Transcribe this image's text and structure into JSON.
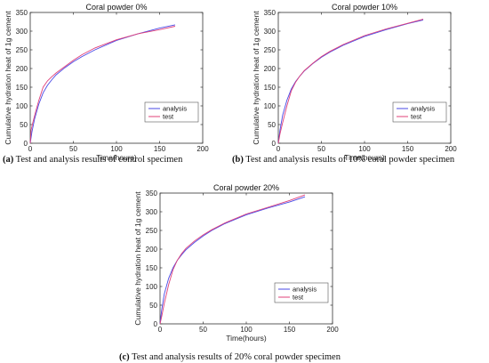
{
  "colors": {
    "analysis": "#4a4ae6",
    "test": "#e0407a",
    "axis": "#333333"
  },
  "chart_data": [
    {
      "type": "line",
      "title": "Coral powder 0%",
      "xlabel": "Time(hours)",
      "ylabel": "Cumulative hydration heat of 1g cement",
      "xlim": [
        0,
        200
      ],
      "ylim": [
        0,
        350
      ],
      "xticks": [
        0,
        50,
        100,
        150,
        200
      ],
      "yticks": [
        0,
        50,
        100,
        150,
        200,
        250,
        300,
        350
      ],
      "legend_position": "lower-right",
      "caption_label": "(a)",
      "caption_text": " Test and analysis results of control specimen",
      "series": [
        {
          "name": "analysis",
          "points": [
            [
              0,
              0
            ],
            [
              2,
              30
            ],
            [
              5,
              65
            ],
            [
              10,
              105
            ],
            [
              15,
              135
            ],
            [
              20,
              155
            ],
            [
              25,
              170
            ],
            [
              30,
              183
            ],
            [
              40,
              202
            ],
            [
              50,
              218
            ],
            [
              60,
              232
            ],
            [
              75,
              250
            ],
            [
              100,
              275
            ],
            [
              125,
              293
            ],
            [
              150,
              308
            ],
            [
              168,
              317
            ]
          ]
        },
        {
          "name": "test",
          "points": [
            [
              0,
              0
            ],
            [
              1,
              35
            ],
            [
              3,
              55
            ],
            [
              6,
              82
            ],
            [
              10,
              115
            ],
            [
              15,
              150
            ],
            [
              20,
              167
            ],
            [
              25,
              178
            ],
            [
              30,
              188
            ],
            [
              40,
              205
            ],
            [
              50,
              222
            ],
            [
              60,
              237
            ],
            [
              75,
              255
            ],
            [
              100,
              277
            ],
            [
              125,
              293
            ],
            [
              150,
              304
            ],
            [
              168,
              313
            ]
          ]
        }
      ]
    },
    {
      "type": "line",
      "title": "Coral powder 10%",
      "xlabel": "Time(hours)",
      "ylabel": "Cumulative hydration heat of 1g cement",
      "xlim": [
        0,
        200
      ],
      "ylim": [
        0,
        350
      ],
      "xticks": [
        0,
        50,
        100,
        150,
        200
      ],
      "yticks": [
        0,
        50,
        100,
        150,
        200,
        250,
        300,
        350
      ],
      "legend_position": "lower-right",
      "caption_label": "(b)",
      "caption_text": " Test and analysis results of 10% coral powder specimen",
      "series": [
        {
          "name": "analysis",
          "points": [
            [
              0,
              0
            ],
            [
              2,
              35
            ],
            [
              5,
              75
            ],
            [
              10,
              115
            ],
            [
              15,
              145
            ],
            [
              20,
              165
            ],
            [
              25,
              180
            ],
            [
              30,
              193
            ],
            [
              40,
              213
            ],
            [
              50,
              230
            ],
            [
              60,
              244
            ],
            [
              75,
              262
            ],
            [
              100,
              286
            ],
            [
              125,
              304
            ],
            [
              150,
              320
            ],
            [
              168,
              330
            ]
          ]
        },
        {
          "name": "test",
          "points": [
            [
              0,
              0
            ],
            [
              2,
              25
            ],
            [
              5,
              55
            ],
            [
              10,
              100
            ],
            [
              15,
              140
            ],
            [
              20,
              163
            ],
            [
              25,
              180
            ],
            [
              30,
              194
            ],
            [
              40,
              214
            ],
            [
              50,
              232
            ],
            [
              60,
              246
            ],
            [
              75,
              264
            ],
            [
              100,
              288
            ],
            [
              125,
              306
            ],
            [
              150,
              321
            ],
            [
              168,
              332
            ]
          ]
        }
      ]
    },
    {
      "type": "line",
      "title": "Coral powder 20%",
      "xlabel": "Time(hours)",
      "ylabel": "Cumulative hydration heat of 1g cement",
      "xlim": [
        0,
        200
      ],
      "ylim": [
        0,
        350
      ],
      "xticks": [
        0,
        50,
        100,
        150,
        200
      ],
      "yticks": [
        0,
        50,
        100,
        150,
        200,
        250,
        300,
        350
      ],
      "legend_position": "lower-right",
      "caption_label": "(c)",
      "caption_text": " Test and analysis results of 20% coral powder specimen",
      "series": [
        {
          "name": "analysis",
          "points": [
            [
              0,
              0
            ],
            [
              2,
              38
            ],
            [
              5,
              80
            ],
            [
              10,
              122
            ],
            [
              15,
              150
            ],
            [
              20,
              170
            ],
            [
              25,
              185
            ],
            [
              30,
              198
            ],
            [
              40,
              218
            ],
            [
              50,
              235
            ],
            [
              60,
              250
            ],
            [
              75,
              268
            ],
            [
              100,
              292
            ],
            [
              125,
              310
            ],
            [
              150,
              326
            ],
            [
              168,
              340
            ]
          ]
        },
        {
          "name": "test",
          "points": [
            [
              0,
              0
            ],
            [
              2,
              20
            ],
            [
              5,
              55
            ],
            [
              10,
              105
            ],
            [
              15,
              145
            ],
            [
              20,
              170
            ],
            [
              25,
              188
            ],
            [
              30,
              202
            ],
            [
              40,
              222
            ],
            [
              50,
              238
            ],
            [
              60,
              252
            ],
            [
              75,
              270
            ],
            [
              100,
              294
            ],
            [
              125,
              312
            ],
            [
              150,
              330
            ],
            [
              168,
              345
            ]
          ]
        }
      ]
    }
  ]
}
